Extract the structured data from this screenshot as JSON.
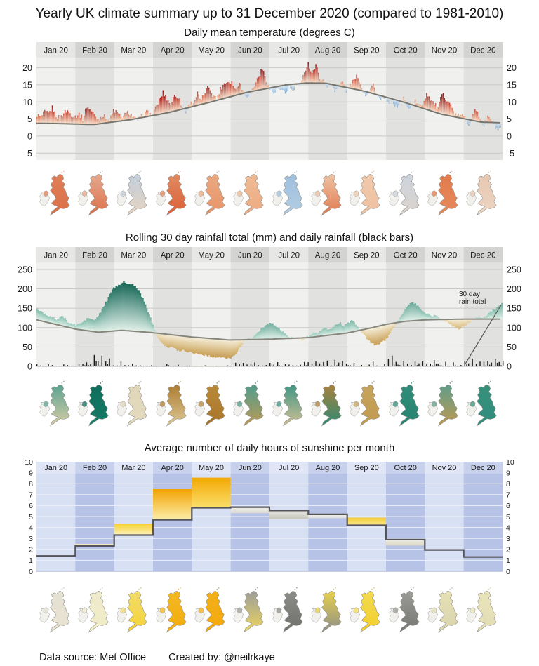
{
  "title": "Yearly UK climate summary up to 31 December 2020 (compared to 1981-2010)",
  "footer": {
    "data_source": "Data source: Met Office",
    "created_by": "Created by: @neilrkaye"
  },
  "months": [
    "Jan 20",
    "Feb 20",
    "Mar 20",
    "Apr 20",
    "May 20",
    "Jun 20",
    "Jul 20",
    "Aug 20",
    "Sep 20",
    "Oct 20",
    "Nov 20",
    "Dec 20"
  ],
  "band_colors": {
    "strip_light": "#e7e7e5",
    "strip_dark": "#d3d3d1",
    "plot_light": "#f0f0ee",
    "plot_dark": "#e1e1df",
    "gridline": "#c9c9c7",
    "zero_line": "#a8a8a4"
  },
  "chart_data": [
    {
      "type": "bar",
      "title": "Daily mean temperature (degrees C)",
      "ylabel": "degrees C",
      "yticks": [
        -5,
        0,
        5,
        10,
        15,
        20
      ],
      "ylim": [
        -7,
        23
      ],
      "x_unit": "day_of_year_2020",
      "climatology_points": [
        [
          1,
          3.75
        ],
        [
          15,
          3.7
        ],
        [
          46,
          3.4
        ],
        [
          75,
          4.8
        ],
        [
          105,
          6.9
        ],
        [
          136,
          9.8
        ],
        [
          166,
          12.8
        ],
        [
          197,
          15.0
        ],
        [
          213,
          15.55
        ],
        [
          228,
          15.5
        ],
        [
          258,
          13.2
        ],
        [
          289,
          10.0
        ],
        [
          319,
          6.4
        ],
        [
          350,
          4.1
        ],
        [
          366,
          3.9
        ]
      ],
      "daily_actual_step": 3,
      "daily_actual": [
        6.2,
        5.5,
        7.0,
        6.5,
        8.3,
        6.0,
        5.2,
        6.8,
        7.5,
        6.3,
        5.8,
        6.5,
        5.0,
        8.7,
        7.8,
        6.2,
        4.8,
        6.0,
        5.5,
        4.4,
        7.6,
        6.8,
        5.4,
        6.2,
        7.0,
        5.8,
        4.6,
        5.2,
        6.4,
        7.2,
        6.0,
        8.0,
        10.5,
        12.8,
        11.0,
        9.2,
        12.0,
        11.5,
        8.4,
        7.0,
        9.5,
        9.8,
        12.5,
        10.2,
        13.0,
        14.5,
        12.2,
        10.8,
        13.8,
        15.5,
        16.0,
        15.8,
        13.5,
        16.2,
        12.8,
        11.9,
        13.0,
        14.8,
        17.5,
        19.6,
        16.4,
        13.8,
        12.6,
        14.0,
        13.2,
        12.4,
        14.6,
        13.0,
        15.8,
        14.2,
        19.0,
        21.3,
        18.5,
        20.6,
        17.2,
        16.0,
        14.8,
        15.2,
        13.6,
        14.4,
        15.8,
        13.2,
        14.8,
        16.5,
        17.6,
        14.0,
        12.2,
        13.4,
        15.2,
        11.8,
        10.4,
        11.6,
        9.2,
        10.8,
        8.6,
        9.6,
        11.2,
        8.2,
        9.0,
        10.2,
        8.8,
        9.4,
        12.6,
        11.0,
        9.4,
        8.0,
        12.2,
        11.4,
        9.8,
        7.2,
        5.6,
        6.4,
        5.2,
        3.4,
        6.8,
        7.4,
        5.0,
        3.0,
        5.8,
        4.4,
        2.4,
        1.6,
        3.2
      ],
      "colors": {
        "warm_base": "#fbdfc8",
        "warm_tip_low": "#f0a97c",
        "warm_tip_high": "#9c1010",
        "cold_base": "#e2eef7",
        "cold_tip_low": "#aecde8",
        "cold_tip_high": "#2c67a5",
        "climatology_line": "#76766f"
      }
    },
    {
      "type": "area",
      "title": "Rolling 30 day rainfall total (mm) and daily rainfall (black bars)",
      "yticks": [
        0,
        50,
        100,
        150,
        200,
        250
      ],
      "ylim": [
        0,
        268
      ],
      "annotation": {
        "line1": "30 day",
        "line2": "rain total"
      },
      "climatology_points": [
        [
          1,
          120
        ],
        [
          32,
          96
        ],
        [
          50,
          88
        ],
        [
          68,
          93
        ],
        [
          92,
          87
        ],
        [
          122,
          76
        ],
        [
          153,
          68
        ],
        [
          183,
          70
        ],
        [
          214,
          74
        ],
        [
          245,
          86
        ],
        [
          265,
          100
        ],
        [
          275,
          108
        ],
        [
          290,
          116
        ],
        [
          306,
          120
        ],
        [
          336,
          122
        ],
        [
          366,
          122
        ]
      ],
      "rolling_actual_points": [
        [
          1,
          148
        ],
        [
          6,
          138
        ],
        [
          11,
          128
        ],
        [
          16,
          121
        ],
        [
          21,
          129
        ],
        [
          26,
          112
        ],
        [
          31,
          106
        ],
        [
          36,
          112
        ],
        [
          41,
          125
        ],
        [
          46,
          118
        ],
        [
          51,
          140
        ],
        [
          56,
          170
        ],
        [
          60,
          200
        ],
        [
          63,
          205
        ],
        [
          66,
          212
        ],
        [
          69,
          220
        ],
        [
          72,
          210
        ],
        [
          75,
          214
        ],
        [
          78,
          205
        ],
        [
          81,
          195
        ],
        [
          84,
          175
        ],
        [
          87,
          150
        ],
        [
          90,
          125
        ],
        [
          92,
          105
        ],
        [
          95,
          80
        ],
        [
          98,
          65
        ],
        [
          101,
          55
        ],
        [
          104,
          48
        ],
        [
          107,
          50
        ],
        [
          110,
          44
        ],
        [
          113,
          40
        ],
        [
          116,
          42
        ],
        [
          119,
          38
        ],
        [
          122,
          36
        ],
        [
          125,
          34
        ],
        [
          128,
          32
        ],
        [
          131,
          30
        ],
        [
          134,
          28
        ],
        [
          137,
          26
        ],
        [
          140,
          24
        ],
        [
          143,
          22
        ],
        [
          146,
          24
        ],
        [
          149,
          21
        ],
        [
          152,
          20
        ],
        [
          155,
          28
        ],
        [
          158,
          38
        ],
        [
          161,
          52
        ],
        [
          164,
          66
        ],
        [
          167,
          74
        ],
        [
          170,
          70
        ],
        [
          173,
          82
        ],
        [
          176,
          95
        ],
        [
          179,
          102
        ],
        [
          182,
          108
        ],
        [
          185,
          112
        ],
        [
          188,
          105
        ],
        [
          191,
          96
        ],
        [
          194,
          88
        ],
        [
          197,
          80
        ],
        [
          200,
          76
        ],
        [
          203,
          70
        ],
        [
          206,
          72
        ],
        [
          209,
          68
        ],
        [
          212,
          74
        ],
        [
          215,
          80
        ],
        [
          218,
          88
        ],
        [
          221,
          84
        ],
        [
          224,
          92
        ],
        [
          227,
          98
        ],
        [
          230,
          94
        ],
        [
          233,
          100
        ],
        [
          236,
          108
        ],
        [
          239,
          112
        ],
        [
          242,
          104
        ],
        [
          245,
          112
        ],
        [
          248,
          118
        ],
        [
          251,
          108
        ],
        [
          254,
          95
        ],
        [
          257,
          85
        ],
        [
          260,
          72
        ],
        [
          263,
          60
        ],
        [
          266,
          56
        ],
        [
          269,
          58
        ],
        [
          272,
          62
        ],
        [
          275,
          70
        ],
        [
          278,
          85
        ],
        [
          281,
          100
        ],
        [
          284,
          115
        ],
        [
          287,
          130
        ],
        [
          290,
          148
        ],
        [
          293,
          160
        ],
        [
          296,
          165
        ],
        [
          299,
          158
        ],
        [
          302,
          148
        ],
        [
          305,
          140
        ],
        [
          308,
          135
        ],
        [
          311,
          128
        ],
        [
          314,
          132
        ],
        [
          317,
          126
        ],
        [
          320,
          120
        ],
        [
          323,
          115
        ],
        [
          326,
          108
        ],
        [
          329,
          100
        ],
        [
          332,
          96
        ],
        [
          335,
          102
        ],
        [
          338,
          108
        ],
        [
          341,
          116
        ],
        [
          344,
          122
        ],
        [
          347,
          128
        ],
        [
          350,
          124
        ],
        [
          353,
          130
        ],
        [
          356,
          138
        ],
        [
          359,
          146
        ],
        [
          362,
          152
        ],
        [
          366,
          162
        ]
      ],
      "daily_rain_step": 3,
      "daily_rain": [
        4,
        6,
        2,
        5,
        3,
        1,
        2,
        6,
        4,
        2,
        3,
        8,
        18,
        25,
        12,
        20,
        15,
        22,
        10,
        14,
        8,
        5,
        12,
        6,
        3,
        8,
        2,
        4,
        1,
        2,
        5,
        1,
        0,
        2,
        4,
        0,
        1,
        3,
        0,
        2,
        1,
        0,
        1,
        0,
        2,
        0,
        0,
        1,
        0,
        0,
        2,
        3,
        8,
        5,
        12,
        4,
        7,
        10,
        6,
        8,
        5,
        6,
        4,
        8,
        3,
        10,
        5,
        7,
        4,
        6,
        9,
        12,
        8,
        15,
        6,
        10,
        20,
        8,
        12,
        7,
        9,
        5,
        4,
        8,
        3,
        6,
        2,
        5,
        10,
        3,
        2,
        4,
        18,
        36,
        10,
        8,
        14,
        6,
        12,
        9,
        7,
        10,
        8,
        5,
        12,
        6,
        4,
        9,
        3,
        7,
        2,
        5,
        10,
        6,
        14,
        8,
        18,
        12,
        22,
        9,
        15,
        8,
        12
      ],
      "colors": {
        "wet_base": "#e2f1ea",
        "wet_tip_low": "#9ed2c2",
        "wet_tip_high": "#0a5d4d",
        "dry_base": "#f6efdc",
        "dry_tip_low": "#ead9a8",
        "dry_tip_high": "#b2791e",
        "climatology_line": "#85857c",
        "daily_bars": "#1a1a1a"
      }
    },
    {
      "type": "step-bar",
      "title": "Average number of daily hours of sunshine per month",
      "yticks": [
        0,
        1,
        2,
        3,
        4,
        5,
        6,
        7,
        8,
        9,
        10
      ],
      "ylim": [
        0,
        10
      ],
      "climatology": [
        1.4,
        2.3,
        3.3,
        4.7,
        5.8,
        5.85,
        5.55,
        5.2,
        4.2,
        2.9,
        1.95,
        1.3
      ],
      "actual": [
        1.4,
        2.5,
        4.35,
        7.5,
        8.55,
        5.3,
        4.75,
        4.85,
        4.9,
        2.35,
        1.95,
        1.3
      ],
      "bar_fills": [
        null,
        [
          "#f0e6bc",
          "#f6f0d6"
        ],
        [
          "#f6cf2e",
          "#fdf3bd"
        ],
        [
          "#f3a202",
          "#fceeaa"
        ],
        [
          "#f4a804",
          "#fadf6a"
        ],
        [
          "#d9d9d2",
          "#efefe8"
        ],
        [
          "#c2c2ba",
          "#e9e9e1"
        ],
        [
          "#dededa",
          "#efefeb"
        ],
        [
          "#f5cd30",
          "#f9e88e"
        ],
        [
          "#dcd8c6",
          "#efede2"
        ],
        null,
        null
      ],
      "colors": {
        "step_line": "#54545a",
        "band_light": "#d8e0f3",
        "band_dark": "#b6c3e6",
        "strip_light": "#e0e6f5",
        "strip_dark": "#c7d1ec",
        "gridline": "#eceff9",
        "bottom_line": "#9aa3c4"
      }
    }
  ],
  "maps": {
    "temperature": [
      {
        "n": "#df7f57",
        "s": "#da6f47"
      },
      {
        "n": "#e5a98e",
        "s": "#dd6f4a"
      },
      {
        "n": "#c3cfdd",
        "s": "#e6d3c0"
      },
      {
        "n": "#e08a62",
        "s": "#dc5f36"
      },
      {
        "n": "#eba881",
        "s": "#e89468"
      },
      {
        "n": "#f0bb95",
        "s": "#edaa80"
      },
      {
        "n": "#9fc0dd",
        "s": "#b3cde4"
      },
      {
        "n": "#eec3a4",
        "s": "#e07a4e"
      },
      {
        "n": "#f0c9ab",
        "s": "#eec0a0"
      },
      {
        "n": "#ccd4de",
        "s": "#dcd3cc"
      },
      {
        "n": "#e27b4d",
        "s": "#e58a5d"
      },
      {
        "n": "#e8c8b2",
        "s": "#ecd5c2"
      }
    ],
    "rainfall": [
      {
        "n": "#5aa392",
        "s": "#d9cda5"
      },
      {
        "n": "#0f6e5d",
        "s": "#157a66"
      },
      {
        "n": "#e0d6b8",
        "s": "#e4dbc0"
      },
      {
        "n": "#ad7c30",
        "s": "#dcc896"
      },
      {
        "n": "#b98a3a",
        "s": "#a97428"
      },
      {
        "n": "#4f9d8c",
        "s": "#bd9a55"
      },
      {
        "n": "#3f9684",
        "s": "#d2c094"
      },
      {
        "n": "#a9813c",
        "s": "#2c8a76"
      },
      {
        "n": "#c7a45e",
        "s": "#c09a4e"
      },
      {
        "n": "#2f8d7a",
        "s": "#27836f"
      },
      {
        "n": "#5f9d8a",
        "s": "#bf9a50"
      },
      {
        "n": "#379078",
        "s": "#2f8d80"
      }
    ],
    "sunshine": [
      {
        "n": "#e4e0d2",
        "s": "#eae4d2"
      },
      {
        "n": "#eeeacc",
        "s": "#f2ecc6"
      },
      {
        "n": "#f2dc6a",
        "s": "#f5d337"
      },
      {
        "n": "#f3b822",
        "s": "#f3ac0e"
      },
      {
        "n": "#f3b01a",
        "s": "#f3a90c"
      },
      {
        "n": "#9d9d99",
        "s": "#ecd75e"
      },
      {
        "n": "#8c8c88",
        "s": "#6f6f6b"
      },
      {
        "n": "#e7d04a",
        "s": "#8f8f8b"
      },
      {
        "n": "#f2da50",
        "s": "#f3cf2a"
      },
      {
        "n": "#9a9a96",
        "s": "#767672"
      },
      {
        "n": "#e6e0b4",
        "s": "#d9d4ae"
      },
      {
        "n": "#eae4ba",
        "s": "#e2dcb6"
      }
    ]
  }
}
